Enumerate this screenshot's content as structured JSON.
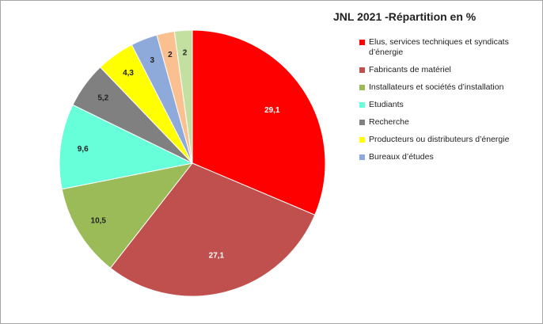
{
  "chart_data": {
    "type": "pie",
    "title": "JNL 2021 -Répartition en  %",
    "categories": [
      "Elus, services techniques et syndicats d’énergie",
      "Fabricants de matériel",
      "Installateurs et sociétés d’installation",
      "Etudiants",
      "Recherche",
      "Producteurs ou distributeurs d’énergie",
      "Bureaux d’études",
      null,
      null
    ],
    "values": [
      29.1,
      27.1,
      10.5,
      9.6,
      5.2,
      4.3,
      3,
      2,
      2
    ],
    "value_labels": [
      "29,1",
      "27,1",
      "10,5",
      "9,6",
      "5,2",
      "4,3",
      "3",
      "2",
      "2"
    ],
    "colors": [
      "#ff0000",
      "#c0504d",
      "#9bbb59",
      "#66ffd9",
      "#808080",
      "#ffff00",
      "#8eaadb",
      "#fac090",
      "#c4e0a0"
    ],
    "legend": "right"
  }
}
